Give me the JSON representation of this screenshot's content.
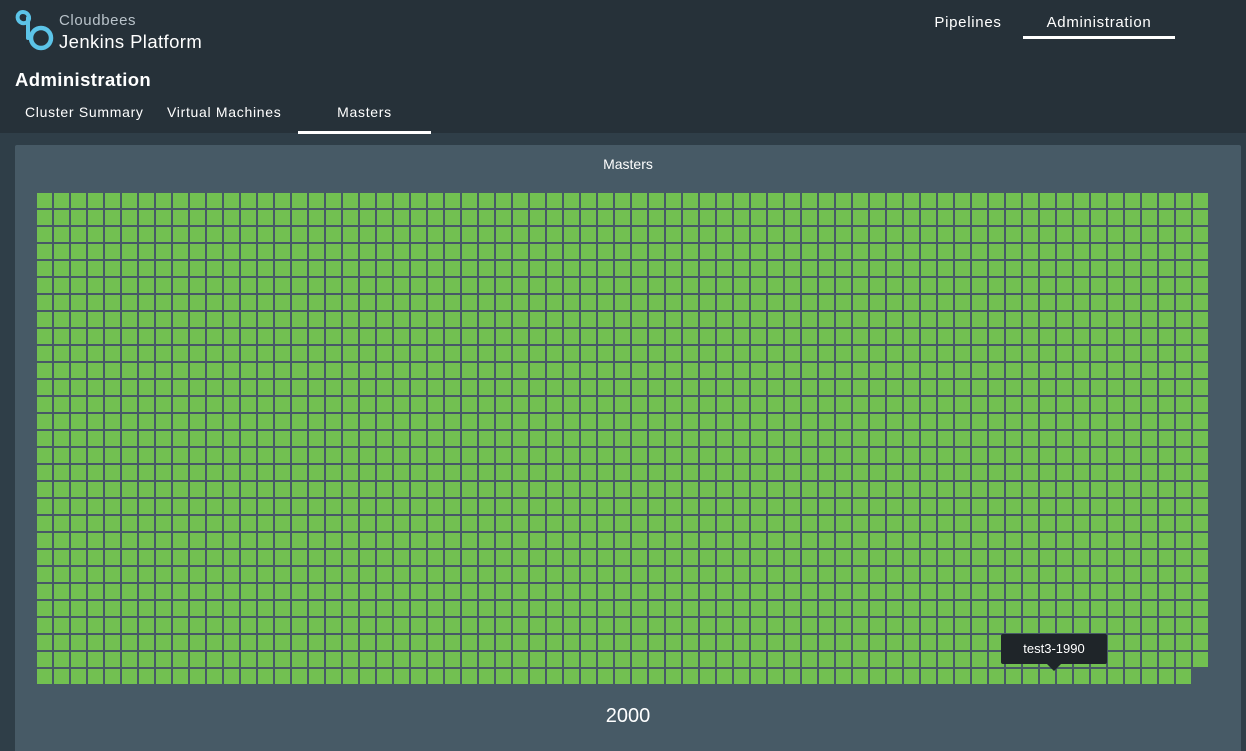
{
  "brand": {
    "company": "Cloudbees",
    "product": "Jenkins Platform",
    "logo_icon": "cloudbees-logo-icon",
    "logo_color": "#5cc4e8"
  },
  "top_nav": {
    "items": [
      "Pipelines",
      "Administration"
    ],
    "active": "Administration"
  },
  "page_title": "Administration",
  "sub_tabs": {
    "items": [
      "Cluster Summary",
      "Virtual Machines",
      "Masters"
    ],
    "active": "Masters"
  },
  "panel": {
    "title": "Masters",
    "total": "2000",
    "tile_count": 2000,
    "tile_status_color": "#72c051",
    "tooltip": "test3-1990"
  },
  "colors": {
    "header_bg": "#263139",
    "page_bg": "#2f3e48",
    "panel_bg": "#475a66",
    "healthy": "#72c051"
  }
}
